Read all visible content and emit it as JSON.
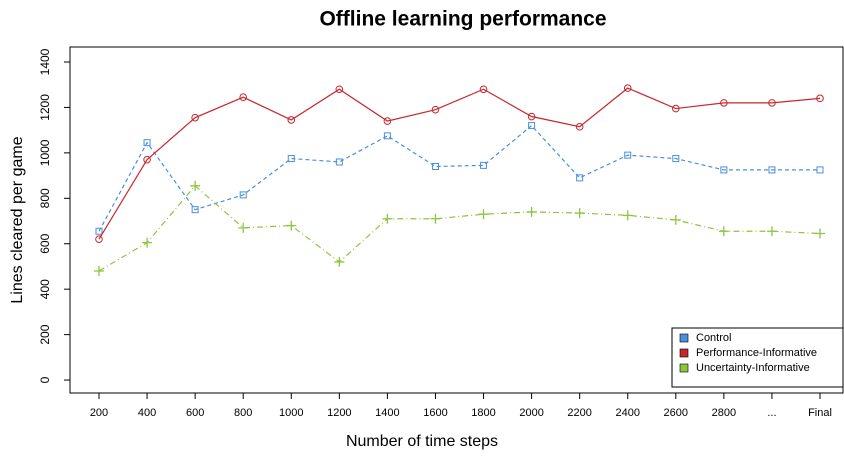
{
  "chart_data": {
    "type": "line",
    "title": "Offline learning performance",
    "x_label": "Number of time steps",
    "y_label": "Lines cleared per game",
    "categories": [
      "200",
      "400",
      "600",
      "800",
      "1000",
      "1200",
      "1400",
      "1600",
      "1800",
      "2000",
      "2200",
      "2400",
      "2600",
      "2800",
      "...",
      "Final"
    ],
    "series": [
      {
        "name": "Control",
        "color": "#4a8fdc",
        "marker": "square",
        "dash": "4,3",
        "values": [
          655,
          1045,
          750,
          815,
          975,
          960,
          1075,
          940,
          945,
          1120,
          890,
          990,
          975,
          925,
          925,
          925
        ]
      },
      {
        "name": "Performance-Informative",
        "color": "#c8262c",
        "marker": "circle",
        "dash": "none",
        "values": [
          620,
          970,
          1155,
          1245,
          1145,
          1280,
          1140,
          1190,
          1280,
          1160,
          1115,
          1285,
          1195,
          1220,
          1220,
          1240
        ]
      },
      {
        "name": "Uncertainty-Informative",
        "color": "#8cc63e",
        "marker": "plus",
        "dash": "6,3,1,3",
        "values": [
          480,
          605,
          855,
          670,
          680,
          520,
          710,
          710,
          730,
          740,
          735,
          725,
          705,
          655,
          655,
          645
        ]
      }
    ],
    "ylim": [
      -57,
      1466
    ],
    "yticks": [
      0,
      200,
      400,
      600,
      800,
      1000,
      1200,
      1400
    ],
    "legend": "bottom-right",
    "grid": false
  }
}
